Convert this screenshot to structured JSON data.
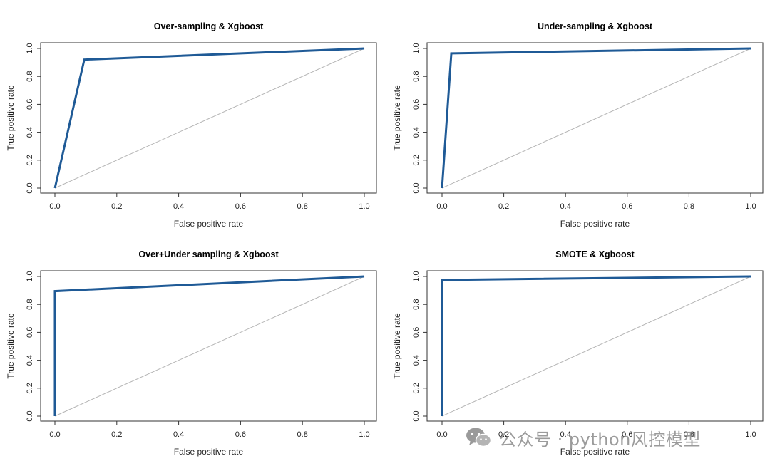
{
  "chart_data": [
    {
      "type": "line",
      "title": "Over-sampling & Xgboost",
      "xlabel": "False positive rate",
      "ylabel": "True positive rate",
      "xlim": [
        0,
        1
      ],
      "ylim": [
        0,
        1
      ],
      "xticks": [
        "0.0",
        "0.2",
        "0.4",
        "0.6",
        "0.8",
        "1.0"
      ],
      "yticks": [
        "0.0",
        "0.2",
        "0.4",
        "0.6",
        "0.8",
        "1.0"
      ],
      "grid": false,
      "legend": "none",
      "series": [
        {
          "color": "#1f5a96",
          "x": [
            0.0,
            0.095,
            1.0
          ],
          "y": [
            0.0,
            0.92,
            1.0
          ]
        },
        {
          "color": "#b5b5b5",
          "x": [
            0.0,
            1.0
          ],
          "y": [
            0.0,
            1.0
          ]
        }
      ]
    },
    {
      "type": "line",
      "title": "Under-sampling & Xgboost",
      "xlabel": "False positive rate",
      "ylabel": "True positive rate",
      "xlim": [
        0,
        1
      ],
      "ylim": [
        0,
        1
      ],
      "xticks": [
        "0.0",
        "0.2",
        "0.4",
        "0.6",
        "0.8",
        "1.0"
      ],
      "yticks": [
        "0.0",
        "0.2",
        "0.4",
        "0.6",
        "0.8",
        "1.0"
      ],
      "grid": false,
      "legend": "none",
      "series": [
        {
          "color": "#1f5a96",
          "x": [
            0.0,
            0.03,
            1.0
          ],
          "y": [
            0.0,
            0.965,
            1.0
          ]
        },
        {
          "color": "#b5b5b5",
          "x": [
            0.0,
            1.0
          ],
          "y": [
            0.0,
            1.0
          ]
        }
      ]
    },
    {
      "type": "line",
      "title": "Over+Under sampling & Xgboost",
      "xlabel": "False positive rate",
      "ylabel": "True positive rate",
      "xlim": [
        0,
        1
      ],
      "ylim": [
        0,
        1
      ],
      "xticks": [
        "0.0",
        "0.2",
        "0.4",
        "0.6",
        "0.8",
        "1.0"
      ],
      "yticks": [
        "0.0",
        "0.2",
        "0.4",
        "0.6",
        "0.8",
        "1.0"
      ],
      "grid": false,
      "legend": "none",
      "series": [
        {
          "color": "#1f5a96",
          "x": [
            0.0,
            0.0,
            1.0
          ],
          "y": [
            0.0,
            0.895,
            1.0
          ]
        },
        {
          "color": "#b5b5b5",
          "x": [
            0.0,
            1.0
          ],
          "y": [
            0.0,
            1.0
          ]
        }
      ]
    },
    {
      "type": "line",
      "title": "SMOTE & Xgboost",
      "xlabel": "False positive rate",
      "ylabel": "True positive rate",
      "xlim": [
        0,
        1
      ],
      "ylim": [
        0,
        1
      ],
      "xticks": [
        "0.0",
        "0.2",
        "0.4",
        "0.6",
        "0.8",
        "1.0"
      ],
      "yticks": [
        "0.0",
        "0.2",
        "0.4",
        "0.6",
        "0.8",
        "1.0"
      ],
      "grid": false,
      "legend": "none",
      "series": [
        {
          "color": "#1f5a96",
          "x": [
            0.0,
            0.0,
            1.0
          ],
          "y": [
            0.0,
            0.975,
            1.0
          ]
        },
        {
          "color": "#b5b5b5",
          "x": [
            0.0,
            1.0
          ],
          "y": [
            0.0,
            1.0
          ]
        }
      ]
    }
  ],
  "watermark": {
    "text": "公众号 · python风控模型",
    "icon": "wechat-icon"
  }
}
